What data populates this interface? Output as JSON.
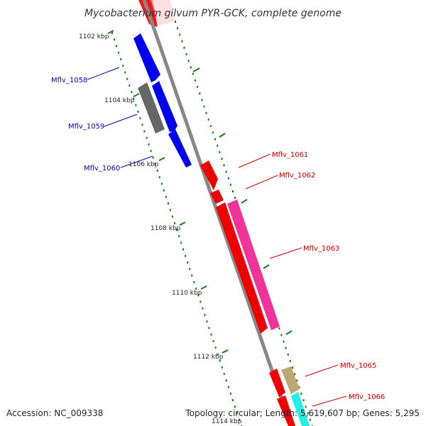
{
  "title": "Mycobacterium gilvum PYR-GCK, complete genome",
  "footer": {
    "accession": "Accession: NC_009338",
    "topology": "Topology: circular; Length: 5,619,607 bp; Genes: 5,295"
  },
  "colors": {
    "backbone": "#888888",
    "tick": "#1a7a1a",
    "blue": "#0000ee",
    "red": "#ee0000",
    "pink": "#ee3399",
    "gray": "#666666",
    "olive": "#bba870",
    "cyan": "#22eeee",
    "label_blue": "#0000cc",
    "label_red": "#cc0000"
  },
  "kbp_labels": [
    "1102 kbp",
    "1104 kbp",
    "1106 kbp",
    "1108 kbp",
    "1110 kbp",
    "1112 kbp",
    "1114 kbp"
  ],
  "gene_labels": [
    {
      "text": "Mflv_1058",
      "color": "blue",
      "side": "left"
    },
    {
      "text": "Mflv_1059",
      "color": "blue",
      "side": "left"
    },
    {
      "text": "Mflv_1060",
      "color": "blue",
      "side": "left"
    },
    {
      "text": "Mflv_1061",
      "color": "red",
      "side": "right"
    },
    {
      "text": "Mflv_1062",
      "color": "red",
      "side": "right"
    },
    {
      "text": "Mflv_1063",
      "color": "red",
      "side": "right"
    },
    {
      "text": "Mflv_1065",
      "color": "red",
      "side": "right"
    },
    {
      "text": "Mflv_1066",
      "color": "red",
      "side": "right"
    }
  ]
}
